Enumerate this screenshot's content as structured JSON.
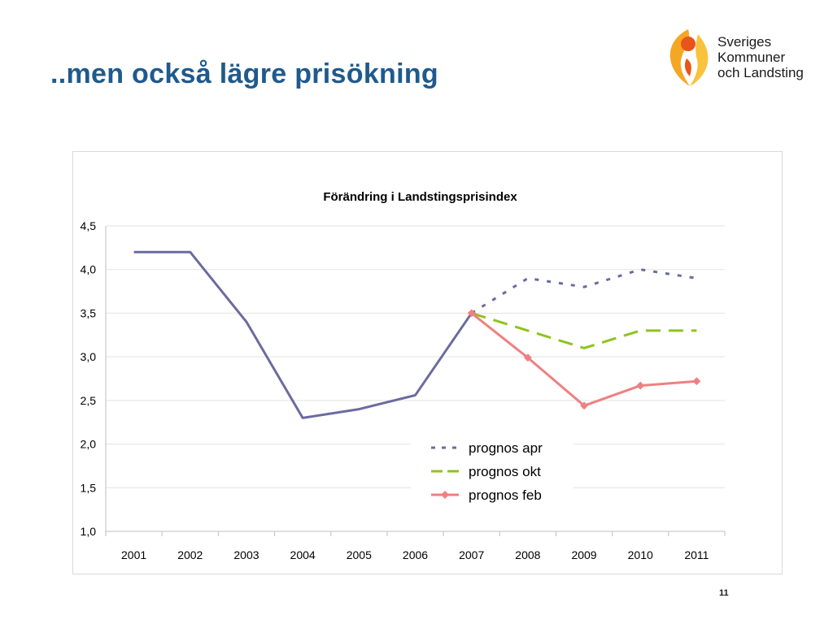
{
  "slide": {
    "title": "..men också lägre prisökning",
    "page_number": "11"
  },
  "logo": {
    "lines": [
      "Sveriges",
      "Kommuner",
      "och Landsting"
    ],
    "colors": {
      "flame_orange": "#f5a623",
      "flame_red": "#e8541a",
      "flame_yellow": "#f9c23c"
    }
  },
  "chart_data": {
    "type": "line",
    "title": "Förändring i Landstingsprisindex",
    "xlabel": "",
    "ylabel": "",
    "categories": [
      "2001",
      "2002",
      "2003",
      "2004",
      "2005",
      "2006",
      "2007",
      "2008",
      "2009",
      "2010",
      "2011"
    ],
    "ylim": [
      1.0,
      4.5
    ],
    "yticks": [
      "1,0",
      "1,5",
      "2,0",
      "2,5",
      "3,0",
      "3,5",
      "4,0",
      "4,5"
    ],
    "ytick_values": [
      1.0,
      1.5,
      2.0,
      2.5,
      3.0,
      3.5,
      4.0,
      4.5
    ],
    "grid": true,
    "legend_position": "bottom-center",
    "series": [
      {
        "name": "",
        "style": "solid",
        "color": "#6b6b9e",
        "values": [
          4.2,
          4.2,
          3.4,
          2.3,
          2.4,
          2.56,
          3.5,
          null,
          null,
          null,
          null
        ]
      },
      {
        "name": "prognos apr",
        "style": "dotted",
        "color": "#6b6b9e",
        "values": [
          null,
          null,
          null,
          null,
          null,
          null,
          3.5,
          3.9,
          3.8,
          4.0,
          3.9
        ]
      },
      {
        "name": "prognos okt",
        "style": "dashed",
        "color": "#8fc31f",
        "values": [
          null,
          null,
          null,
          null,
          null,
          null,
          3.5,
          3.3,
          3.1,
          3.3,
          3.3
        ]
      },
      {
        "name": "prognos feb",
        "style": "solid-markers",
        "color": "#f08080",
        "values": [
          null,
          null,
          null,
          null,
          null,
          null,
          3.5,
          2.99,
          2.44,
          2.67,
          2.72
        ]
      }
    ]
  }
}
